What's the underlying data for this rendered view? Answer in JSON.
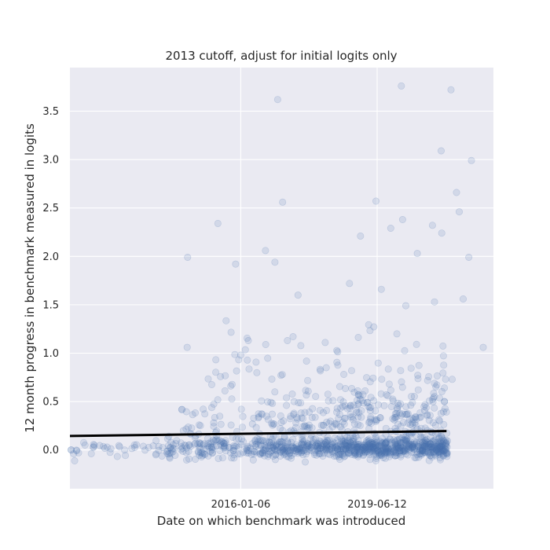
{
  "chart_data": {
    "type": "scatter",
    "title": "2013 cutoff, adjust for initial logits only",
    "xlabel": "Date on which benchmark was introduced",
    "ylabel": "12 month progress in benchmark measured in logits",
    "x_axis_kind": "date",
    "xlim": [
      "2011-09-20",
      "2022-05-15"
    ],
    "ylim": [
      -0.4,
      3.95
    ],
    "x_ticks": [
      "2016-01-06",
      "2019-06-12"
    ],
    "y_ticks": [
      0.0,
      0.5,
      1.0,
      1.5,
      2.0,
      2.5,
      3.0,
      3.5
    ],
    "y_tick_labels": [
      "0.0",
      "0.5",
      "1.0",
      "1.5",
      "2.0",
      "2.5",
      "3.0",
      "3.5"
    ],
    "grid": true,
    "background_color": "#eaeaf2",
    "point_color": "#4c72b0",
    "point_alpha": 0.15,
    "line_color": "#000000",
    "regression_line": {
      "x": [
        "2011-09-20",
        "2021-03-10"
      ],
      "y": [
        0.145,
        0.195
      ]
    },
    "notable_points": [
      {
        "x": "2011-09-27",
        "y": 0.33
      },
      {
        "x": "2012-05-01",
        "y": 0.05
      },
      {
        "x": "2014-09-05",
        "y": 1.99
      },
      {
        "x": "2014-09-01",
        "y": 1.06
      },
      {
        "x": "2015-06-10",
        "y": 2.34
      },
      {
        "x": "2015-11-20",
        "y": 1.92
      },
      {
        "x": "2016-03-15",
        "y": 1.13
      },
      {
        "x": "2016-08-20",
        "y": 2.06
      },
      {
        "x": "2016-12-10",
        "y": 3.62
      },
      {
        "x": "2016-11-15",
        "y": 1.94
      },
      {
        "x": "2017-01-25",
        "y": 2.56
      },
      {
        "x": "2017-06-15",
        "y": 1.6
      },
      {
        "x": "2017-05-01",
        "y": 1.17
      },
      {
        "x": "2018-10-01",
        "y": 1.72
      },
      {
        "x": "2019-01-10",
        "y": 2.21
      },
      {
        "x": "2019-06-01",
        "y": 2.57
      },
      {
        "x": "2019-07-20",
        "y": 1.66
      },
      {
        "x": "2019-10-15",
        "y": 2.29
      },
      {
        "x": "2020-01-20",
        "y": 3.76
      },
      {
        "x": "2020-02-01",
        "y": 2.38
      },
      {
        "x": "2020-03-01",
        "y": 1.49
      },
      {
        "x": "2020-06-15",
        "y": 2.03
      },
      {
        "x": "2020-11-01",
        "y": 2.32
      },
      {
        "x": "2020-11-20",
        "y": 1.53
      },
      {
        "x": "2021-01-20",
        "y": 3.09
      },
      {
        "x": "2021-01-25",
        "y": 2.24
      },
      {
        "x": "2021-04-20",
        "y": 3.72
      },
      {
        "x": "2021-06-10",
        "y": 2.66
      },
      {
        "x": "2021-07-05",
        "y": 2.46
      },
      {
        "x": "2021-08-10",
        "y": 1.56
      },
      {
        "x": "2021-10-25",
        "y": 2.99
      },
      {
        "x": "2021-10-01",
        "y": 1.99
      },
      {
        "x": "2022-02-10",
        "y": 1.06
      },
      {
        "x": "2016-01-06",
        "y": 0.98
      },
      {
        "x": "2018-03-01",
        "y": 0.85
      },
      {
        "x": "2017-03-01",
        "y": 0.46
      },
      {
        "x": "2018-10-20",
        "y": 0.82
      },
      {
        "x": "2019-10-01",
        "y": 0.68
      },
      {
        "x": "2020-05-01",
        "y": 0.49
      },
      {
        "x": "2021-05-01",
        "y": 0.73
      }
    ],
    "cluster_bands": [
      {
        "x_from": "2011-10-01",
        "x_to": "2014-03-01",
        "y_center": 0.0,
        "y_spread": 0.08,
        "n": 40
      },
      {
        "x_from": "2014-03-01",
        "x_to": "2016-03-01",
        "y_center": 0.02,
        "y_spread": 0.1,
        "n": 120
      },
      {
        "x_from": "2016-03-01",
        "x_to": "2018-06-01",
        "y_center": 0.02,
        "y_spread": 0.1,
        "n": 240
      },
      {
        "x_from": "2018-06-01",
        "x_to": "2021-03-20",
        "y_center": 0.02,
        "y_spread": 0.1,
        "n": 520
      },
      {
        "x_from": "2014-06-01",
        "x_to": "2016-06-01",
        "y_center": 0.25,
        "y_spread": 0.25,
        "n": 40
      },
      {
        "x_from": "2016-06-01",
        "x_to": "2018-06-01",
        "y_center": 0.3,
        "y_spread": 0.3,
        "n": 90
      },
      {
        "x_from": "2018-06-01",
        "x_to": "2021-03-20",
        "y_center": 0.3,
        "y_spread": 0.35,
        "n": 220
      },
      {
        "x_from": "2015-01-01",
        "x_to": "2021-03-20",
        "y_center": 0.85,
        "y_spread": 0.45,
        "n": 80
      }
    ]
  }
}
